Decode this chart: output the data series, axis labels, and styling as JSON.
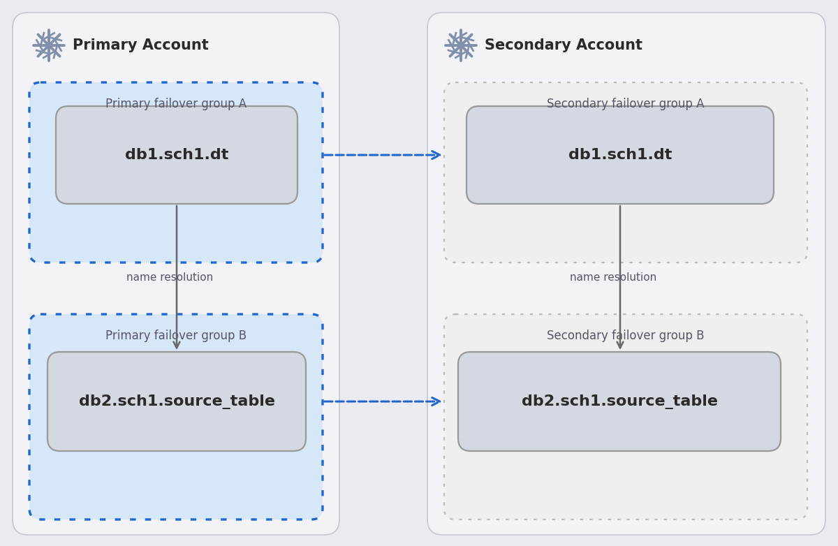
{
  "bg_color": "#eaeaf0",
  "panel_bg": "#f2f2f7",
  "panel_border": "#c8c8d4",
  "box_blue_fill": "#d6e8f8",
  "box_blue_border": "#2266cc",
  "box_gray_fill": "#efefef",
  "box_gray_border": "#bbbbbb",
  "inner_box_fill": "#d4d8e0",
  "inner_box_border": "#999999",
  "arrow_color": "#666666",
  "dotted_arrow_color": "#2266cc",
  "snowflake_color": "#8090aa",
  "primary_account_label": "Primary Account",
  "secondary_account_label": "Secondary Account",
  "primary_group_a_label": "Primary failover group A",
  "primary_group_b_label": "Primary failover group B",
  "secondary_group_a_label": "Secondary failover group A",
  "secondary_group_b_label": "Secondary failover group B",
  "db1_label": "db1.sch1.dt",
  "db2_label": "db2.sch1.source_table",
  "name_resolution_label": "name resolution",
  "text_color": "#2a2a2a",
  "label_color": "#555566",
  "title_fontsize": 15,
  "label_fontsize": 12,
  "inner_label_fontsize": 16,
  "name_res_fontsize": 11
}
